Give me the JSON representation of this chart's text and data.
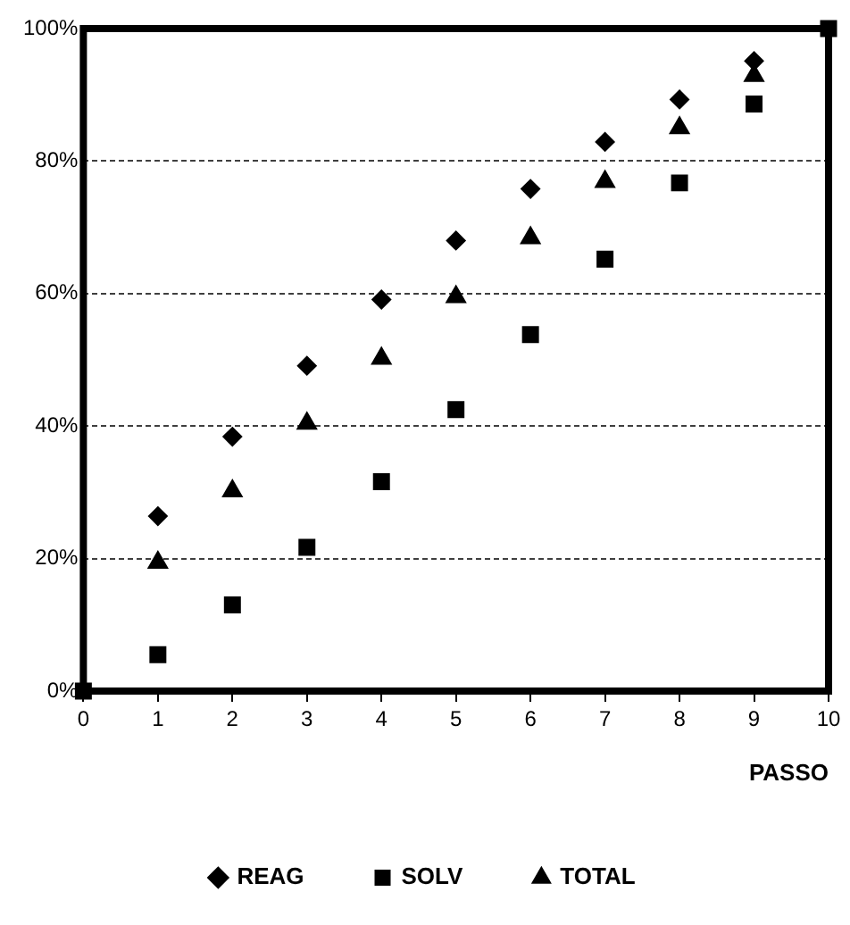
{
  "chart_data": {
    "type": "scatter",
    "xlabel": "PASSO",
    "x": [
      0,
      1,
      2,
      3,
      4,
      5,
      6,
      7,
      8,
      9,
      10
    ],
    "series": [
      {
        "name": "REAG",
        "color": "#000000",
        "marker": "diamond",
        "values": [
          null,
          26.4,
          38.4,
          49.1,
          59.1,
          68,
          75.8,
          82.9,
          89.3,
          95.1,
          null
        ]
      },
      {
        "name": "SOLV",
        "color": "#000000",
        "marker": "square",
        "values": [
          0,
          5.5,
          13,
          21.7,
          31.6,
          42.5,
          53.8,
          65.2,
          76.7,
          88.6,
          100
        ]
      },
      {
        "name": "TOTAL",
        "color": "#000000",
        "marker": "triangle",
        "values": [
          null,
          19.4,
          30.2,
          40.4,
          50.2,
          59.5,
          68.4,
          76.9,
          85,
          92.9,
          null
        ]
      }
    ],
    "xlim": [
      0,
      10
    ],
    "xticks": [
      0,
      1,
      2,
      3,
      4,
      5,
      6,
      7,
      8,
      9,
      10
    ],
    "ylim": [
      0,
      100
    ],
    "yticks": [
      {
        "value": 0,
        "label": "0%"
      },
      {
        "value": 20,
        "label": "20%"
      },
      {
        "value": 40,
        "label": "40%"
      },
      {
        "value": 60,
        "label": "60%"
      },
      {
        "value": 80,
        "label": "80%"
      },
      {
        "value": 100,
        "label": "100%"
      }
    ],
    "grid": "y",
    "line_style": "dashed",
    "legend": "bottom"
  }
}
